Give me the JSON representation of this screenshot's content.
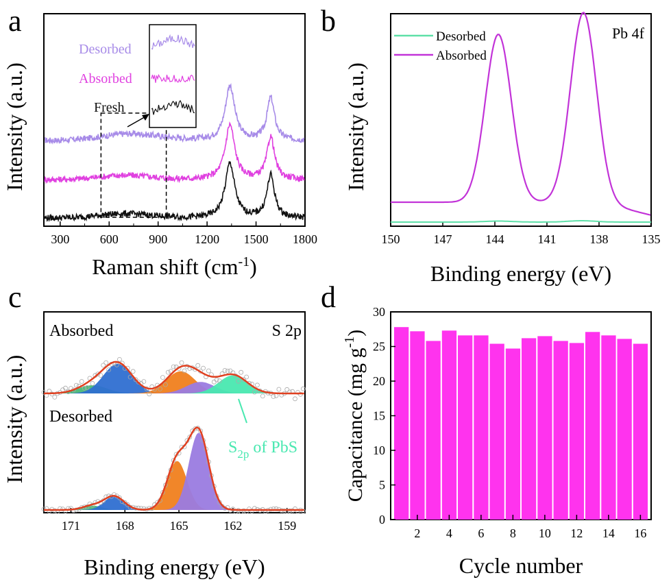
{
  "chart_data": [
    {
      "panel": "a",
      "type": "line",
      "xlabel": "Raman shift (cm",
      "xlabel_sup": "-1",
      "xlabel_end": ")",
      "ylabel": "Intensity (a.u.)",
      "xlim": [
        200,
        1800
      ],
      "xticks": [
        300,
        600,
        900,
        1200,
        1500,
        1800
      ],
      "series": [
        {
          "name": "Desorbed",
          "color": "#a78be8",
          "offset": 0.66
        },
        {
          "name": "Absorbed",
          "color": "#e040e0",
          "offset": 0.36
        },
        {
          "name": "Fresh",
          "color": "#111111",
          "offset": 0.08
        }
      ],
      "peaks": {
        "D_band": 1340,
        "G_band": 1590
      },
      "inset_range": [
        550,
        950
      ],
      "annotations": [
        "Fresh"
      ]
    },
    {
      "panel": "b",
      "type": "line",
      "xlabel": "Binding energy (eV)",
      "ylabel": "Intensity (a.u.)",
      "xlim": [
        150,
        135
      ],
      "xticks": [
        150,
        147,
        144,
        141,
        138,
        135
      ],
      "annotation": "Pb 4f",
      "series": [
        {
          "name": "Desorbed",
          "color": "#5ee0a8"
        },
        {
          "name": "Absorbed",
          "color": "#c233d8"
        }
      ],
      "peaks": [
        {
          "position": 143.8,
          "height": 0.79
        },
        {
          "position": 138.9,
          "height": 0.96
        }
      ]
    },
    {
      "panel": "c",
      "type": "line",
      "xlabel": "Binding energy (eV)",
      "ylabel": "Intensity (a.u.)",
      "xlim": [
        172.5,
        158
      ],
      "xticks": [
        171,
        168,
        165,
        162,
        159
      ],
      "annotation": "S 2p",
      "labels": {
        "top": "Absorbed",
        "bottom": "Desorbed",
        "callout_main": "S",
        "callout_sub": "2p",
        "callout_end": " of PbS"
      },
      "components_absorbed": [
        {
          "center": 169.8,
          "height": 0.1,
          "color": "#49b877"
        },
        {
          "center": 168.4,
          "height": 0.36,
          "color": "#2f6fd1"
        },
        {
          "center": 164.9,
          "height": 0.27,
          "color": "#f07f1e"
        },
        {
          "center": 163.8,
          "height": 0.14,
          "color": "#9a7be0"
        },
        {
          "center": 162.0,
          "height": 0.22,
          "color": "#49e8b0"
        }
      ],
      "components_desorbed": [
        {
          "center": 169.8,
          "height": 0.05,
          "color": "#49b877"
        },
        {
          "center": 168.6,
          "height": 0.16,
          "color": "#2f6fd1"
        },
        {
          "center": 165.1,
          "height": 0.57,
          "color": "#f07f1e"
        },
        {
          "center": 163.9,
          "height": 0.9,
          "color": "#9a7be0"
        }
      ]
    },
    {
      "panel": "d",
      "type": "bar",
      "xlabel": "Cycle number",
      "ylabel": "Capacitance (mg g",
      "ylabel_sup": "-1",
      "ylabel_end": ")",
      "ylim": [
        0,
        30
      ],
      "yticks": [
        0,
        5,
        10,
        15,
        20,
        25,
        30
      ],
      "xticks": [
        2,
        4,
        6,
        8,
        10,
        12,
        14,
        16
      ],
      "bar_color": "#ff33ee",
      "categories": [
        1,
        2,
        3,
        4,
        5,
        6,
        7,
        8,
        9,
        10,
        11,
        12,
        13,
        14,
        15,
        16
      ],
      "values": [
        27.8,
        27.2,
        25.8,
        27.3,
        26.6,
        26.6,
        25.4,
        24.7,
        26.2,
        26.5,
        25.8,
        25.5,
        27.1,
        26.6,
        26.1,
        25.4
      ]
    }
  ]
}
